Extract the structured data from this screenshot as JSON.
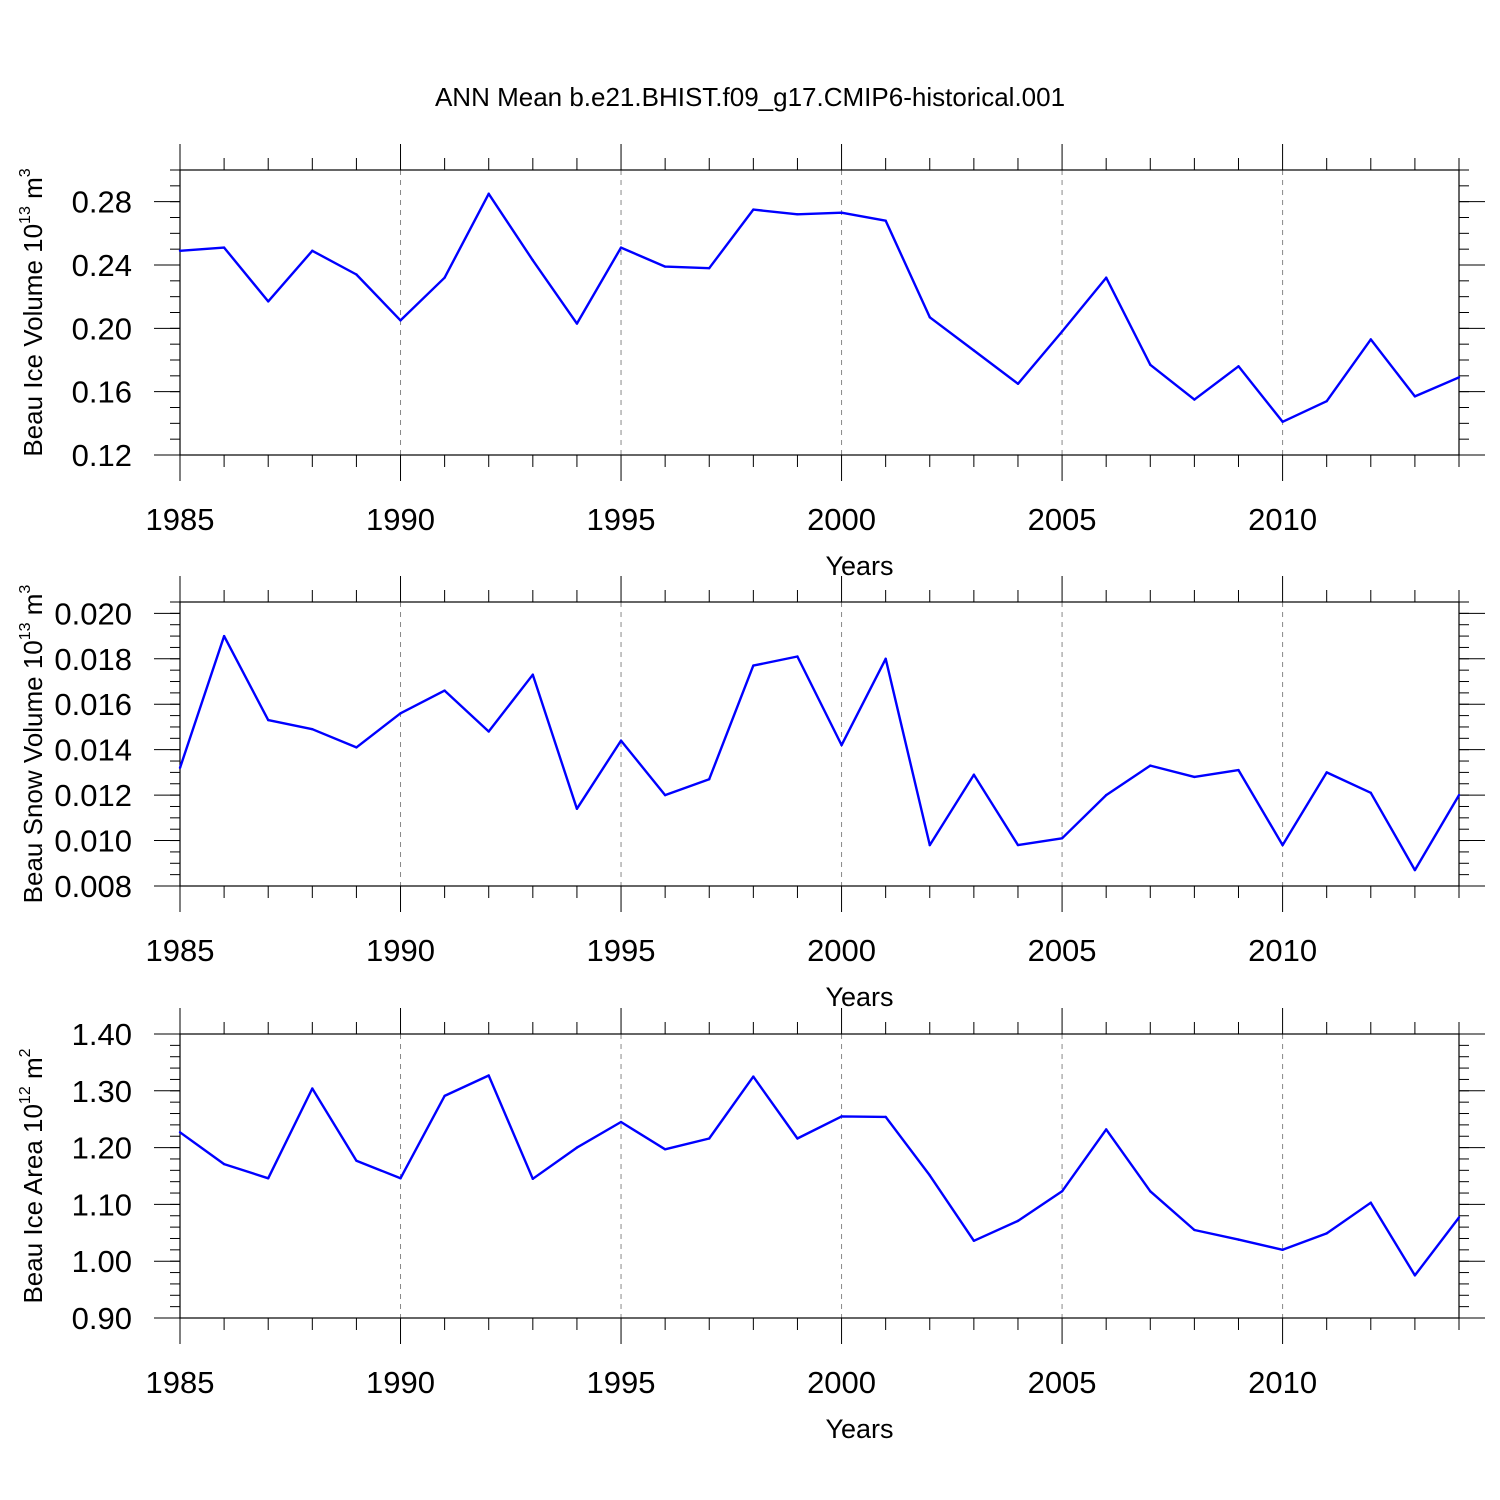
{
  "title": "ANN Mean b.e21.BHIST.f09_g17.CMIP6-historical.001",
  "chart_data": [
    {
      "type": "line",
      "ylabel": "Beau Ice Volume 10",
      "ylabel_exp": "13",
      "ylabel_unit": "m",
      "ylabel_unit_exp": "3",
      "xlabel": "Years",
      "xlim": [
        1985,
        2014
      ],
      "ylim": [
        0.12,
        0.3
      ],
      "xticks": [
        1985,
        1990,
        1995,
        2000,
        2005,
        2010
      ],
      "yticks": [
        0.12,
        0.16,
        0.2,
        0.24,
        0.28
      ],
      "ytick_labels": [
        "0.12",
        "0.16",
        "0.20",
        "0.24",
        "0.28"
      ],
      "x": [
        1985,
        1986,
        1987,
        1988,
        1989,
        1990,
        1991,
        1992,
        1993,
        1994,
        1995,
        1996,
        1997,
        1998,
        1999,
        2000,
        2001,
        2002,
        2003,
        2004,
        2005,
        2006,
        2007,
        2008,
        2009,
        2010,
        2011,
        2012,
        2013,
        2014
      ],
      "values": [
        0.249,
        0.251,
        0.217,
        0.249,
        0.234,
        0.205,
        0.232,
        0.285,
        0.243,
        0.203,
        0.251,
        0.239,
        0.238,
        0.275,
        0.272,
        0.273,
        0.268,
        0.207,
        0.186,
        0.165,
        0.198,
        0.232,
        0.177,
        0.155,
        0.176,
        0.141,
        0.154,
        0.193,
        0.157,
        0.169
      ],
      "ysub": 0.01
    },
    {
      "type": "line",
      "ylabel": "Beau Snow Volume 10",
      "ylabel_exp": "13",
      "ylabel_unit": "m",
      "ylabel_unit_exp": "3",
      "xlabel": "Years",
      "xlim": [
        1985,
        2014
      ],
      "ylim": [
        0.008,
        0.0205
      ],
      "xticks": [
        1985,
        1990,
        1995,
        2000,
        2005,
        2010
      ],
      "yticks": [
        0.008,
        0.01,
        0.012,
        0.014,
        0.016,
        0.018,
        0.02
      ],
      "ytick_labels": [
        "0.008",
        "0.010",
        "0.012",
        "0.014",
        "0.016",
        "0.018",
        "0.020"
      ],
      "x": [
        1985,
        1986,
        1987,
        1988,
        1989,
        1990,
        1991,
        1992,
        1993,
        1994,
        1995,
        1996,
        1997,
        1998,
        1999,
        2000,
        2001,
        2002,
        2003,
        2004,
        2005,
        2006,
        2007,
        2008,
        2009,
        2010,
        2011,
        2012,
        2013,
        2014
      ],
      "values": [
        0.0132,
        0.019,
        0.0153,
        0.0149,
        0.0141,
        0.0156,
        0.0166,
        0.0148,
        0.0173,
        0.0114,
        0.0144,
        0.012,
        0.0127,
        0.0177,
        0.0181,
        0.0142,
        0.018,
        0.0098,
        0.0129,
        0.0098,
        0.0101,
        0.012,
        0.0133,
        0.0128,
        0.0131,
        0.0098,
        0.013,
        0.0121,
        0.0087,
        0.012
      ],
      "ysub": 0.0005
    },
    {
      "type": "line",
      "ylabel": "Beau Ice Area 10",
      "ylabel_exp": "12",
      "ylabel_unit": "m",
      "ylabel_unit_exp": "2",
      "xlabel": "Years",
      "xlim": [
        1985,
        2014
      ],
      "ylim": [
        0.9,
        1.4
      ],
      "xticks": [
        1985,
        1990,
        1995,
        2000,
        2005,
        2010
      ],
      "yticks": [
        0.9,
        1.0,
        1.1,
        1.2,
        1.3,
        1.4
      ],
      "ytick_labels": [
        "0.90",
        "1.00",
        "1.10",
        "1.20",
        "1.30",
        "1.40"
      ],
      "x": [
        1985,
        1986,
        1987,
        1988,
        1989,
        1990,
        1991,
        1992,
        1993,
        1994,
        1995,
        1996,
        1997,
        1998,
        1999,
        2000,
        2001,
        2002,
        2003,
        2004,
        2005,
        2006,
        2007,
        2008,
        2009,
        2010,
        2011,
        2012,
        2013,
        2014
      ],
      "values": [
        1.227,
        1.171,
        1.146,
        1.304,
        1.177,
        1.146,
        1.291,
        1.327,
        1.145,
        1.2,
        1.245,
        1.197,
        1.216,
        1.325,
        1.216,
        1.255,
        1.254,
        1.151,
        1.036,
        1.071,
        1.123,
        1.232,
        1.123,
        1.055,
        1.038,
        1.02,
        1.049,
        1.103,
        0.975,
        1.077
      ],
      "ysub": 0.02
    }
  ]
}
